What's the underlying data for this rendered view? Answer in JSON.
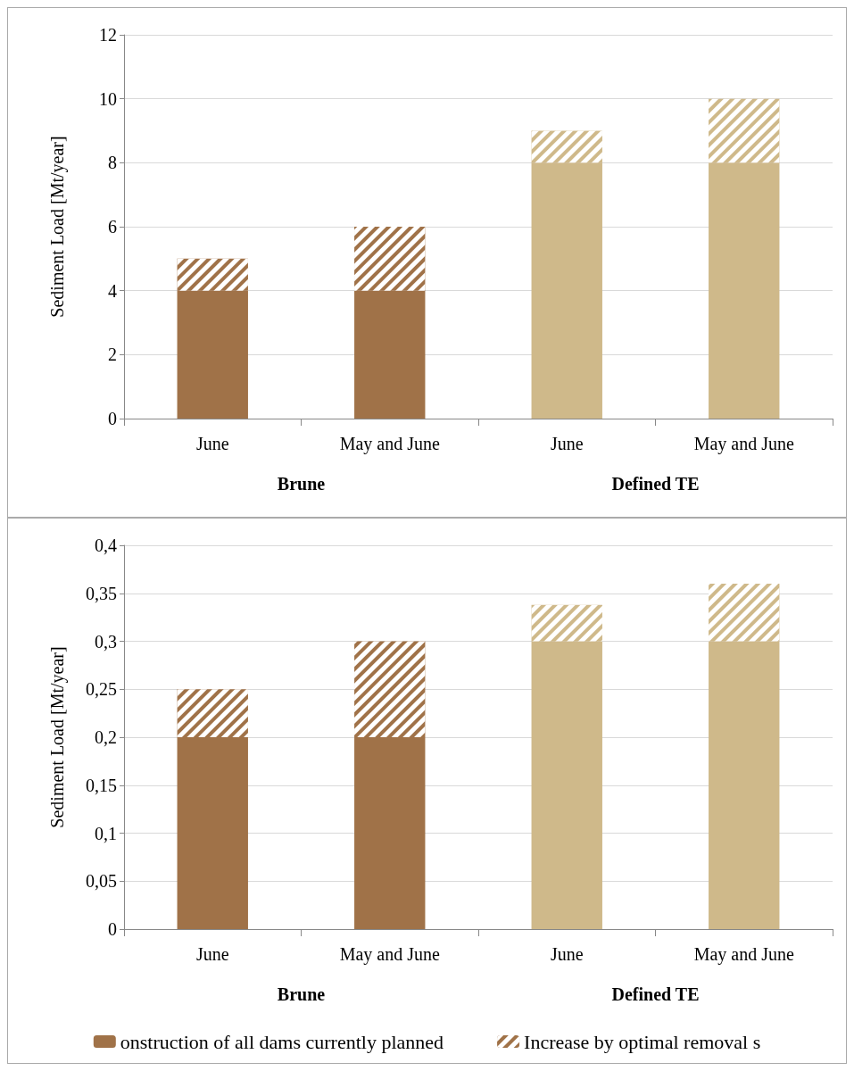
{
  "chart_data": [
    {
      "type": "bar",
      "stacked": true,
      "ylabel": "Sediment Load [Mt/year]",
      "categories": [
        "June",
        "May and June",
        "June",
        "May and June"
      ],
      "annotations": [
        "Brune",
        "Defined TE"
      ],
      "series": [
        {
          "colors": [
            "#a07248",
            "#a07248",
            "#cfb98a",
            "#cfb98a"
          ],
          "values": [
            4,
            4,
            8,
            8
          ]
        },
        {
          "colors": [
            "#a07248",
            "#a07248",
            "#cfb98a",
            "#cfb98a"
          ],
          "values": [
            1,
            2,
            1,
            2
          ]
        }
      ],
      "ylim": [
        0,
        12
      ],
      "yticks": [
        0,
        2,
        4,
        6,
        8,
        10,
        12
      ],
      "grid": "y"
    },
    {
      "type": "bar",
      "stacked": true,
      "ylabel": "Sediment Load [Mt/year]",
      "categories": [
        "June",
        "May and June",
        "June",
        "May and June"
      ],
      "annotations": [
        "Brune",
        "Defined TE"
      ],
      "series": [
        {
          "name": "onstruction of all dams currently planned",
          "colors": [
            "#a07248",
            "#a07248",
            "#cfb98a",
            "#cfb98a"
          ],
          "values": [
            0.2,
            0.2,
            0.3,
            0.3
          ]
        },
        {
          "name": "Increase by optimal removal s",
          "colors": [
            "#a07248",
            "#a07248",
            "#cfb98a",
            "#cfb98a"
          ],
          "values": [
            0.05,
            0.1,
            0.038,
            0.06
          ]
        }
      ],
      "ylim": [
        0,
        0.4
      ],
      "yticks": [
        0,
        {
          "value": 0.05,
          "label": "0,05"
        },
        {
          "value": 0.1,
          "label": "0,1"
        },
        {
          "value": 0.15,
          "label": "0,15"
        },
        {
          "value": 0.2,
          "label": "0,2"
        },
        {
          "value": 0.25,
          "label": "0,25"
        },
        {
          "value": 0.3,
          "label": "0,3"
        },
        {
          "value": 0.35,
          "label": "0,35"
        },
        {
          "value": 0.4,
          "label": "0,4"
        }
      ],
      "grid": "y",
      "legend": "bottom"
    }
  ]
}
